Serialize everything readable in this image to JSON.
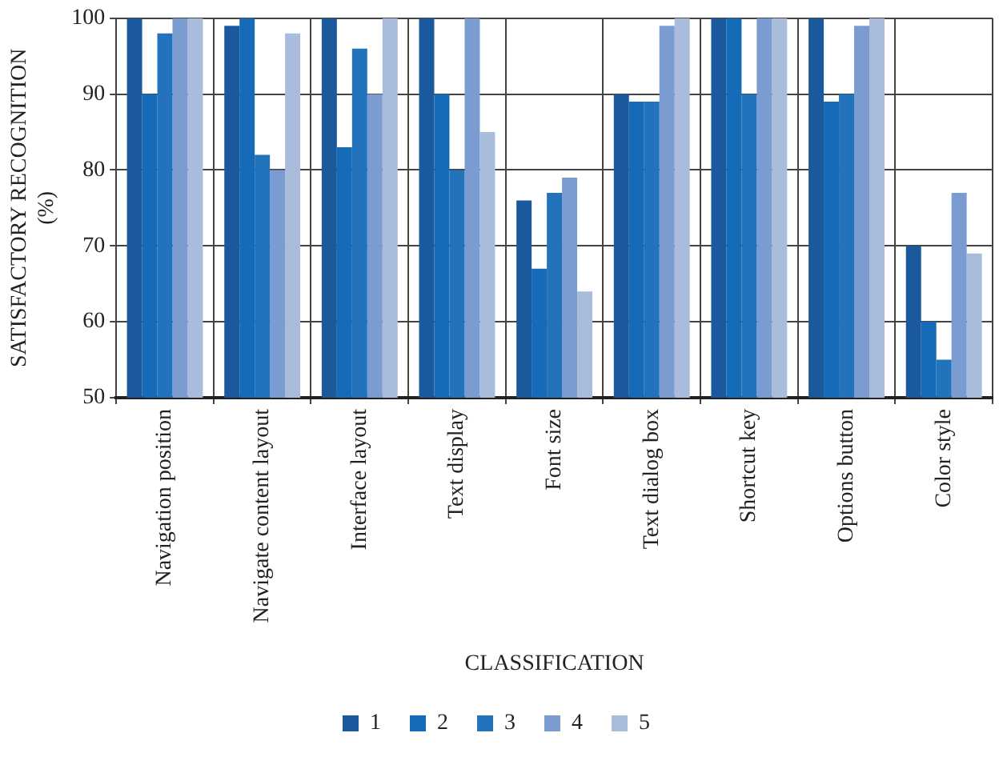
{
  "chart_data": {
    "type": "bar",
    "xlabel": "CLASSIFICATION",
    "ylabel": "SATISFACTORY RECOGNITION (%)",
    "categories": [
      "Navigation position",
      "Navigate content layout",
      "Interface layout",
      "Text display",
      "Font size",
      "Text dialog box",
      "Shortcut key",
      "Options button",
      "Color style"
    ],
    "series": [
      {
        "name": "1",
        "color": "#1a5a9c",
        "values": [
          100,
          99,
          100,
          100,
          76,
          90,
          100,
          100,
          70
        ]
      },
      {
        "name": "2",
        "color": "#156bb8",
        "values": [
          90,
          100,
          83,
          90,
          67,
          89,
          100,
          89,
          60
        ]
      },
      {
        "name": "3",
        "color": "#2272bc",
        "values": [
          98,
          82,
          96,
          80,
          77,
          89,
          90,
          90,
          55
        ]
      },
      {
        "name": "4",
        "color": "#7b9cd0",
        "values": [
          100,
          80,
          90,
          100,
          79,
          99,
          100,
          99,
          77
        ]
      },
      {
        "name": "5",
        "color": "#a9bcdc",
        "values": [
          100,
          98,
          100,
          85,
          64,
          100,
          100,
          100,
          69
        ]
      }
    ],
    "ylim": [
      50,
      100
    ],
    "yticks": [
      50,
      60,
      70,
      80,
      90,
      100
    ],
    "grid": true,
    "legend": "bottom"
  }
}
